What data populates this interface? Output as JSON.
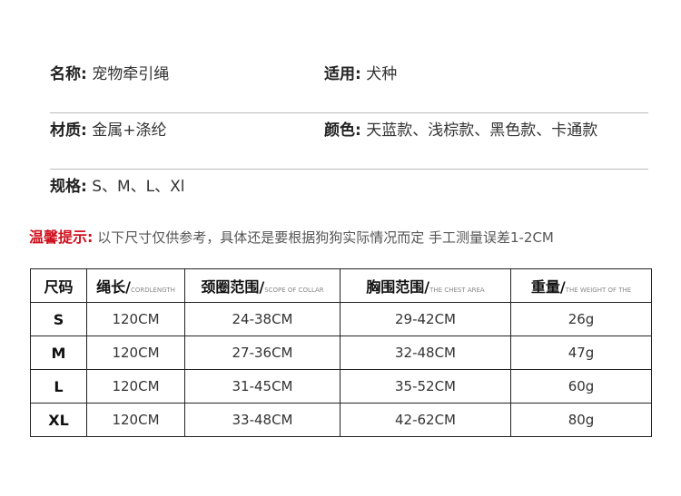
{
  "info": [
    {
      "left": {
        "key": "名称:",
        "value": "宠物牵引绳"
      },
      "right": {
        "key": "适用:",
        "value": "犬种"
      }
    },
    {
      "left": {
        "key": "材质:",
        "value": "金属+涤纶"
      },
      "right": {
        "key": "颜色:",
        "value": "天蓝款、浅棕款、黑色款、卡通款"
      }
    },
    {
      "left": {
        "key": "规格:",
        "value": "S、M、L、Xl"
      }
    }
  ],
  "tip": {
    "label": "温馨提示:",
    "text": "以下尺寸仅供参考，具体还是要根据狗狗实际情况而定  手工测量误差1-2CM"
  },
  "table": {
    "headers": [
      {
        "cn": "尺码",
        "en": ""
      },
      {
        "cn": "绳长/",
        "en": "CORDLENGTH"
      },
      {
        "cn": "颈圈范围/",
        "en": "SCOPE OF COLLAR"
      },
      {
        "cn": "胸围范围/",
        "en": "THE CHEST AREA"
      },
      {
        "cn": "重量/",
        "en": "THE WEIGHT OF THE"
      }
    ],
    "rows": [
      [
        "S",
        "120CM",
        "24-38CM",
        "29-42CM",
        "26g"
      ],
      [
        "M",
        "120CM",
        "27-36CM",
        "32-48CM",
        "47g"
      ],
      [
        "L",
        "120CM",
        "31-45CM",
        "35-52CM",
        "60g"
      ],
      [
        "XL",
        "120CM",
        "33-48CM",
        "42-62CM",
        "80g"
      ]
    ]
  }
}
